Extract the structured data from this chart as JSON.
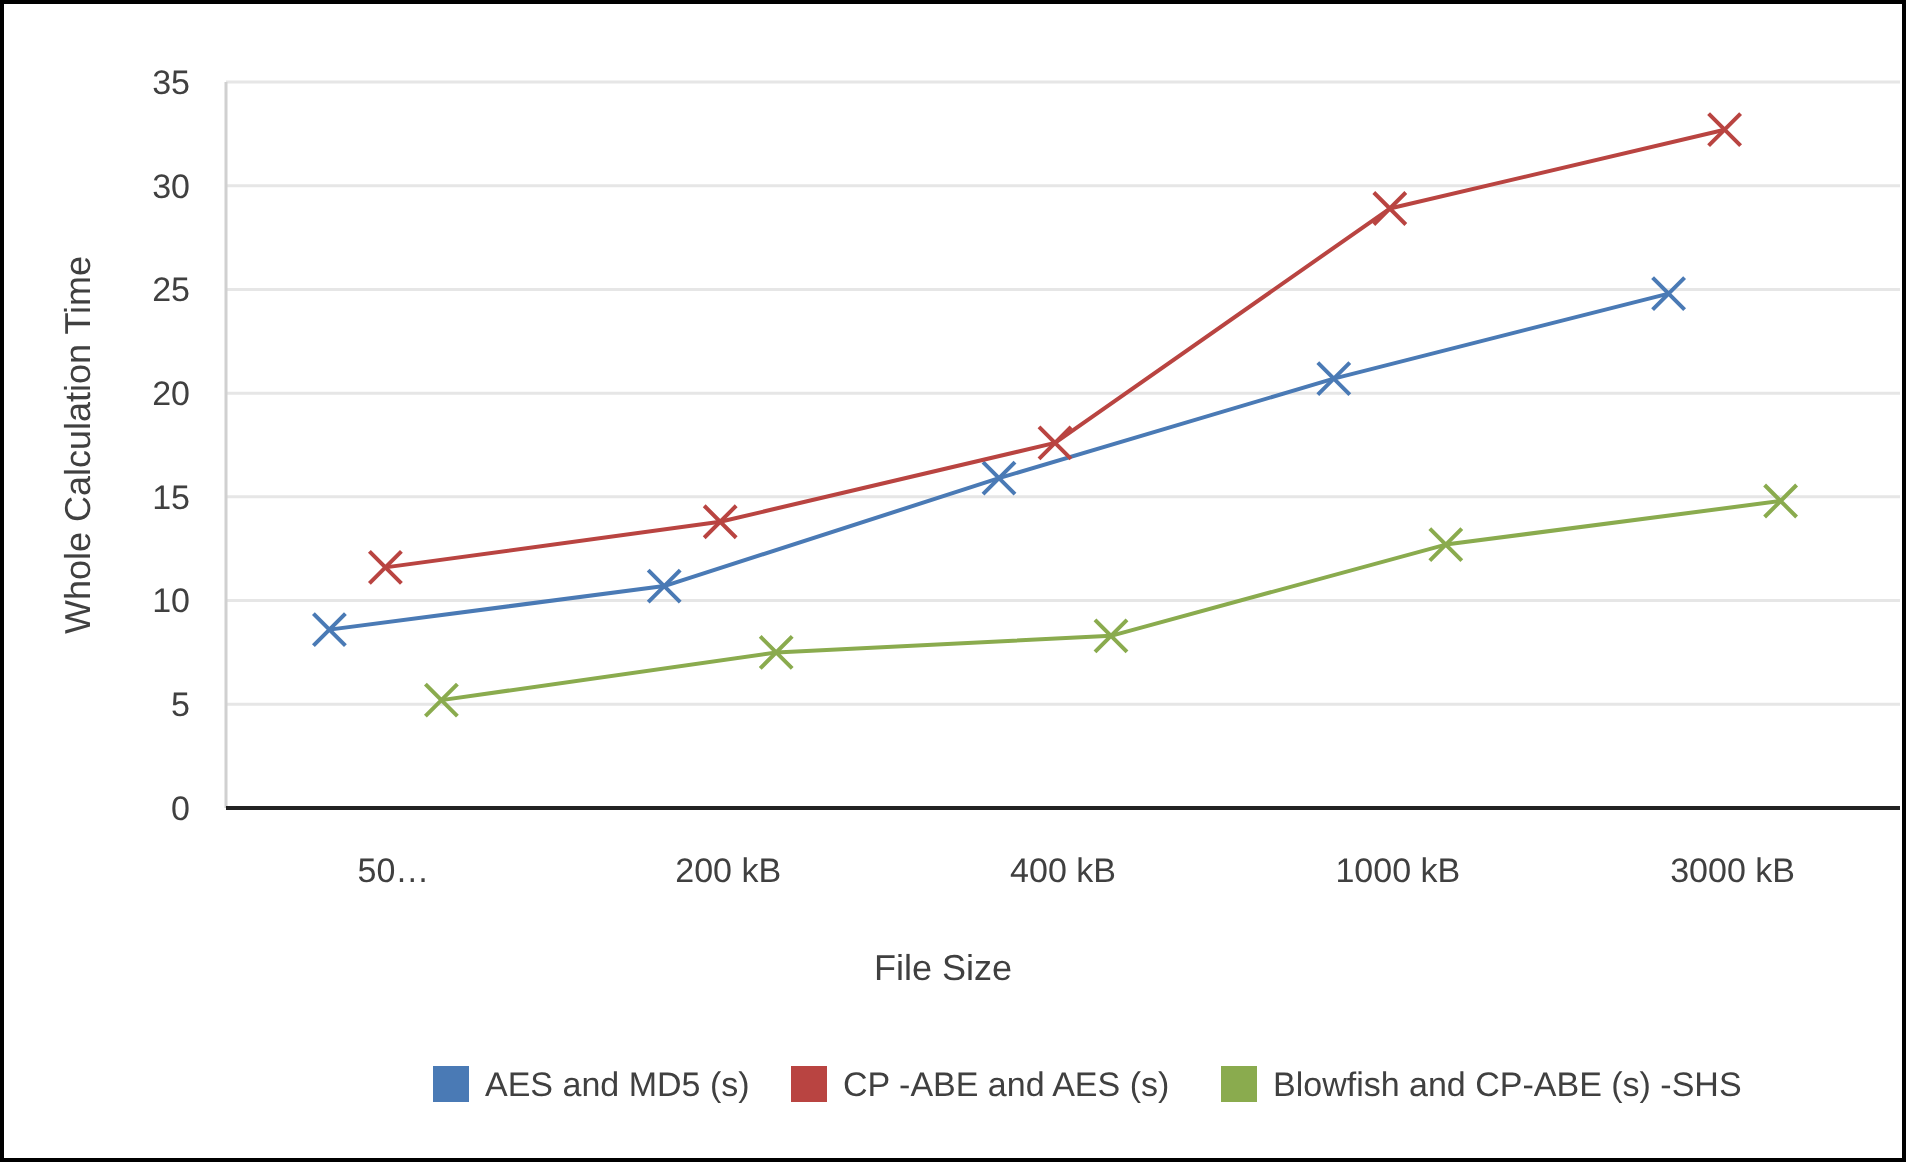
{
  "chart_data": {
    "type": "line",
    "xlabel": "File Size",
    "ylabel": "Whole Calculation Time",
    "categories": [
      "50…",
      "200 kB",
      "400 kB",
      "1000 kB",
      "3000 kB"
    ],
    "series": [
      {
        "name": "AES and MD5 (s)",
        "color": "#4a7ab5",
        "values": [
          8.6,
          10.7,
          15.9,
          20.7,
          24.8
        ]
      },
      {
        "name": "CP -ABE and AES (s)",
        "color": "#b94441",
        "values": [
          11.6,
          13.8,
          17.6,
          28.9,
          32.7
        ]
      },
      {
        "name": "Blowfish and CP-ABE (s) -SHS",
        "color": "#8aab4e",
        "values": [
          5.2,
          7.5,
          8.3,
          12.7,
          14.8
        ]
      }
    ],
    "ylim": [
      0,
      35
    ],
    "yticks": [
      0,
      5,
      10,
      15,
      20,
      25,
      30,
      35
    ],
    "grid": "y",
    "legend": "bottom",
    "marker": "cross",
    "line_style": "solid"
  }
}
